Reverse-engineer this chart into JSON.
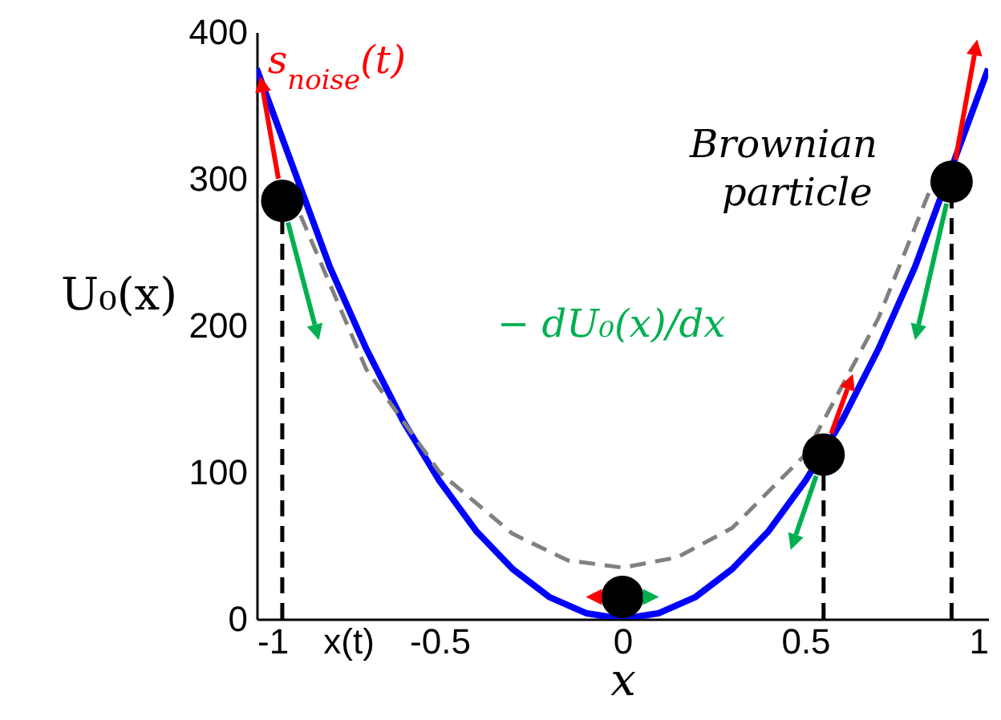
{
  "chart_data": {
    "type": "line",
    "xlabel": "x",
    "ylabel": "U₀(x)",
    "xlim": [
      -1,
      1
    ],
    "xticks": [
      -1,
      {
        "value": -0.75,
        "label": "x(t)"
      },
      -0.5,
      0,
      0.5,
      1
    ],
    "ylim": [
      0,
      400
    ],
    "yticks": [
      0,
      100,
      200,
      300,
      400
    ],
    "grid": false,
    "annotations": [
      {
        "text": "s$_{noise}$(t)",
        "x": -0.97,
        "y": 372
      },
      "− dU₀(x)/dx",
      "Brownian particle"
    ],
    "series": [
      {
        "color": "#0000ff",
        "line_style": "solid",
        "x": [
          -1,
          -0.8,
          -0.7,
          -0.6,
          -0.5,
          -0.4,
          -0.3,
          -0.2,
          -0.1,
          0,
          0.1,
          0.2,
          0.3,
          0.4,
          0.5,
          0.6,
          0.7,
          0.8,
          1
        ],
        "values": [
          375,
          240,
          184,
          135,
          94,
          60,
          34,
          15,
          4,
          0,
          4,
          15,
          34,
          60,
          94,
          135,
          184,
          240,
          375
        ]
      },
      {
        "color": "#808080",
        "line_style": "dashed",
        "x": [
          -0.88,
          -0.7,
          -0.5,
          -0.3,
          -0.15,
          0,
          0.15,
          0.3,
          0.5,
          0.7,
          0.85
        ],
        "values": [
          275,
          170,
          100,
          58,
          40,
          35,
          42,
          62,
          112,
          205,
          298
        ]
      },
      {
        "color": "#000000",
        "line_style": "dashed",
        "x": [
          -0.93,
          -0.93
        ],
        "values": [
          0,
          285
        ]
      },
      {
        "color": "#000000",
        "line_style": "dashed",
        "x": [
          0.55,
          0.55
        ],
        "values": [
          0,
          112
        ]
      },
      {
        "color": "#000000",
        "line_style": "dashed",
        "x": [
          0.9,
          0.9
        ],
        "values": [
          0,
          298
        ]
      },
      {
        "type": "scatter",
        "color": "#000000",
        "marker": "circle",
        "x": [
          -0.93,
          0,
          0.55,
          0.9
        ],
        "values": [
          285,
          15,
          112,
          298
        ]
      }
    ]
  }
}
